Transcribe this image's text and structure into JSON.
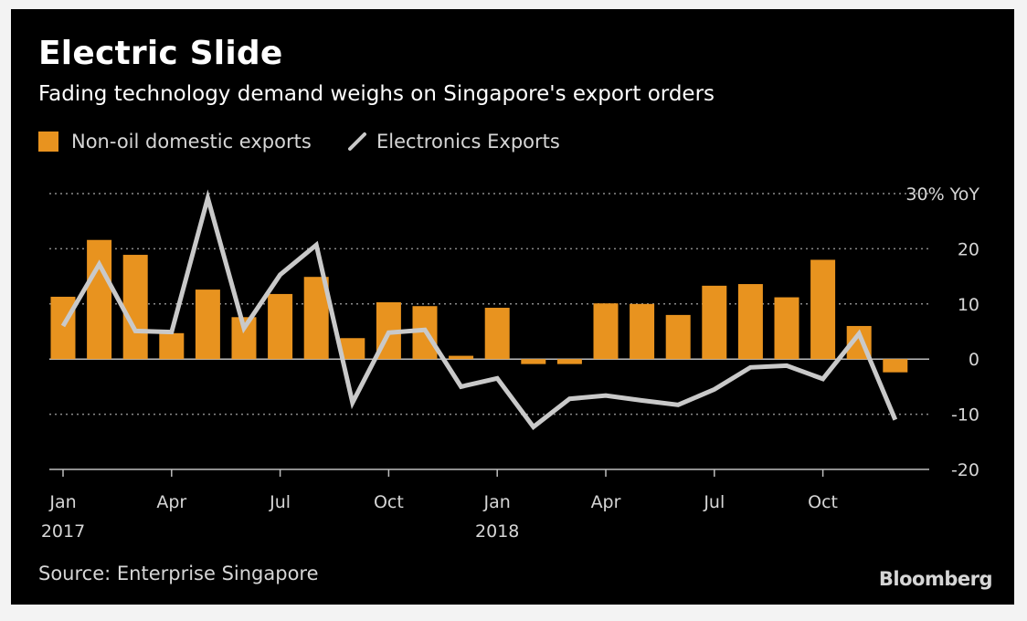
{
  "chart_data": {
    "type": "bar",
    "title": "Electric Slide",
    "subtitle": "Fading technology demand weighs on Singapore's export orders",
    "ylabel": "",
    "ylim": [
      -20,
      30
    ],
    "yticks": [
      "30% YoY",
      "20",
      "10",
      "0",
      "-10",
      "-20"
    ],
    "ytick_values": [
      30,
      20,
      10,
      0,
      -10,
      -20
    ],
    "xtick_labels": [
      {
        "month_index": 0,
        "label": "Jan",
        "year": "2017"
      },
      {
        "month_index": 3,
        "label": "Apr",
        "year": ""
      },
      {
        "month_index": 6,
        "label": "Jul",
        "year": ""
      },
      {
        "month_index": 9,
        "label": "Oct",
        "year": ""
      },
      {
        "month_index": 12,
        "label": "Jan",
        "year": "2018"
      },
      {
        "month_index": 15,
        "label": "Apr",
        "year": ""
      },
      {
        "month_index": 18,
        "label": "Jul",
        "year": ""
      },
      {
        "month_index": 21,
        "label": "Oct",
        "year": ""
      }
    ],
    "categories": [
      "Jan 2017",
      "Feb 2017",
      "Mar 2017",
      "Apr 2017",
      "May 2017",
      "Jun 2017",
      "Jul 2017",
      "Aug 2017",
      "Sep 2017",
      "Oct 2017",
      "Nov 2017",
      "Dec 2017",
      "Jan 2018",
      "Feb 2018",
      "Mar 2018",
      "Apr 2018",
      "May 2018",
      "Jun 2018",
      "Jul 2018",
      "Aug 2018",
      "Sep 2018",
      "Oct 2018",
      "Nov 2018",
      "Dec 2018"
    ],
    "series": [
      {
        "name": "Non-oil domestic exports",
        "kind": "bar",
        "color": "#e8931f",
        "values": [
          11.3,
          21.6,
          18.9,
          4.7,
          12.6,
          7.6,
          11.8,
          14.9,
          3.8,
          10.3,
          9.6,
          0.6,
          9.3,
          -0.9,
          -0.9,
          10.1,
          10.0,
          8.0,
          13.3,
          13.6,
          11.2,
          18.0,
          6.0,
          -2.4
        ]
      },
      {
        "name": "Electronics Exports",
        "kind": "line",
        "color": "#c9c9c9",
        "values": [
          6.0,
          17.2,
          5.1,
          4.9,
          29.2,
          5.6,
          15.3,
          20.7,
          -7.9,
          4.8,
          5.3,
          -5.0,
          -3.5,
          -12.3,
          -7.2,
          -6.6,
          -7.5,
          -8.3,
          -5.5,
          -1.5,
          -1.2,
          -3.6,
          4.6,
          -11.0
        ]
      }
    ],
    "grid": true,
    "legend": "top-left"
  },
  "source": "Source: Enterprise Singapore",
  "logo": "Bloomberg",
  "colors": {
    "background": "#000000",
    "grid": "#8a8a8a",
    "text": "#d6d6d6"
  }
}
